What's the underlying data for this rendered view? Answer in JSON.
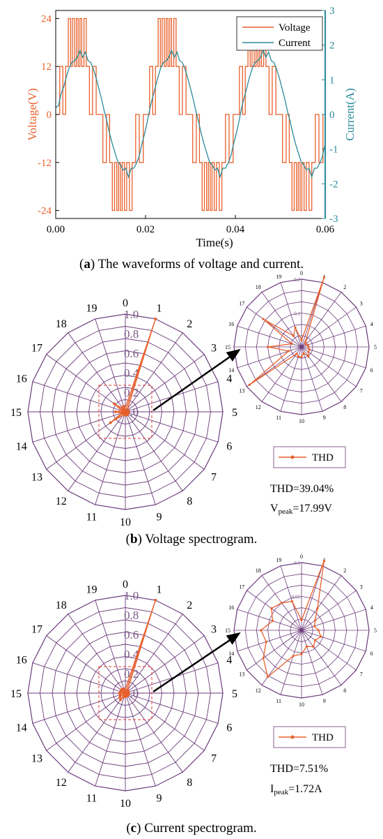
{
  "colors": {
    "voltage": "#e8602c",
    "current": "#2a8a9a",
    "grid": "#6b3a7a",
    "arrow": "#000000",
    "zoombox": "#e53935"
  },
  "chart_data": [
    {
      "panel": "a",
      "type": "line",
      "xlabel": "Time(s)",
      "ylabel_left": "Voltage(V)",
      "ylabel_right": "Current(A)",
      "xlim": [
        0,
        0.06
      ],
      "ylim_left": [
        -26,
        26
      ],
      "ylim_right": [
        -3,
        3
      ],
      "xticks": [
        "0.00",
        "0.02",
        "0.04",
        "0.06"
      ],
      "yticks_left": [
        "24",
        "12",
        "0",
        "-12",
        "-24"
      ],
      "yticks_right": [
        "3",
        "2",
        "1",
        "0",
        "-1",
        "-2",
        "-3"
      ],
      "legend": [
        "Voltage",
        "Current"
      ],
      "legend_position": "top-right",
      "series": [
        {
          "name": "Voltage",
          "axis": "left",
          "x": [
            0,
            0.0009,
            0.0009,
            0.0016,
            0.0016,
            0.0022,
            0.0022,
            0.0028,
            0.0028,
            0.0033,
            0.0033,
            0.0037,
            0.0037,
            0.0042,
            0.0042,
            0.0046,
            0.0046,
            0.005,
            0.005,
            0.0054,
            0.0054,
            0.0058,
            0.0058,
            0.0063,
            0.0063,
            0.0068,
            0.0068,
            0.0075,
            0.0075,
            0.0082,
            0.0082,
            0.009,
            0.009,
            0.0105,
            0.0105,
            0.0113,
            0.0113,
            0.012,
            0.012,
            0.0126,
            0.0126,
            0.0131,
            0.0131,
            0.0136,
            0.0136,
            0.014,
            0.014,
            0.0144,
            0.0144,
            0.0148,
            0.0148,
            0.0153,
            0.0153,
            0.0158,
            0.0158,
            0.0164,
            0.0164,
            0.017,
            0.017,
            0.0178,
            0.0178,
            0.0186,
            0.0186,
            0.0195,
            0.0195,
            0.0209,
            0.0209,
            0.0216,
            0.0216,
            0.0222,
            0.0222,
            0.0228,
            0.0228,
            0.0233,
            0.0233,
            0.0237,
            0.0237,
            0.0242,
            0.0242,
            0.0246,
            0.0246,
            0.025,
            0.025,
            0.0254,
            0.0254,
            0.0258,
            0.0258,
            0.0263,
            0.0263,
            0.0268,
            0.0268,
            0.0275,
            0.0275,
            0.0282,
            0.0282,
            0.029,
            0.029,
            0.0305,
            0.0305,
            0.0313,
            0.0313,
            0.032,
            0.032,
            0.0326,
            0.0326,
            0.0331,
            0.0331,
            0.0336,
            0.0336,
            0.034,
            0.034,
            0.0344,
            0.0344,
            0.0348,
            0.0348,
            0.0353,
            0.0353,
            0.0358,
            0.0358,
            0.0364,
            0.0364,
            0.037,
            0.037,
            0.0378,
            0.0378,
            0.0386,
            0.0386,
            0.0395,
            0.0395,
            0.0409,
            0.0409,
            0.0416,
            0.0416,
            0.0422,
            0.0422,
            0.0428,
            0.0428,
            0.0433,
            0.0433,
            0.0437,
            0.0437,
            0.0442,
            0.0442,
            0.0446,
            0.0446,
            0.045,
            0.045,
            0.0454,
            0.0454,
            0.0458,
            0.0458,
            0.0463,
            0.0463,
            0.0468,
            0.0468,
            0.0475,
            0.0475,
            0.0482,
            0.0482,
            0.049,
            0.049,
            0.0505,
            0.0505,
            0.0513,
            0.0513,
            0.052,
            0.052,
            0.0526,
            0.0526,
            0.0531,
            0.0531,
            0.0536,
            0.0536,
            0.054,
            0.054,
            0.0544,
            0.0544,
            0.0548,
            0.0548,
            0.0553,
            0.0553,
            0.0558,
            0.0558,
            0.0564,
            0.0564,
            0.057,
            0.057,
            0.0578,
            0.0578,
            0.0586,
            0.0586,
            0.0595,
            0.0595,
            0.06
          ],
          "y": [
            0,
            0,
            12,
            12,
            0,
            0,
            12,
            12,
            24,
            24,
            12,
            12,
            24,
            24,
            12,
            12,
            24,
            24,
            12,
            12,
            24,
            24,
            12,
            12,
            24,
            24,
            12,
            12,
            0,
            0,
            12,
            12,
            0,
            0,
            -12,
            -12,
            0,
            0,
            -12,
            -12,
            -24,
            -24,
            -12,
            -12,
            -24,
            -24,
            -12,
            -12,
            -24,
            -24,
            -12,
            -12,
            -24,
            -24,
            -12,
            -12,
            -24,
            -24,
            -12,
            -12,
            0,
            0,
            -12,
            -12,
            0,
            0,
            12,
            12,
            0,
            0,
            12,
            12,
            24,
            24,
            12,
            12,
            24,
            24,
            12,
            12,
            24,
            24,
            12,
            12,
            24,
            24,
            12,
            12,
            24,
            24,
            12,
            12,
            0,
            0,
            12,
            12,
            0,
            0,
            -12,
            -12,
            0,
            0,
            -12,
            -12,
            -24,
            -24,
            -12,
            -12,
            -24,
            -24,
            -12,
            -12,
            -24,
            -24,
            -12,
            -12,
            -24,
            -24,
            -12,
            -12,
            -24,
            -24,
            -12,
            -12,
            0,
            0,
            -12,
            -12,
            0,
            0,
            12,
            12,
            0,
            0,
            12,
            12,
            24,
            24,
            12,
            12,
            24,
            24,
            12,
            12,
            24,
            24,
            12,
            12,
            24,
            24,
            12,
            12,
            24,
            24,
            12,
            12,
            0,
            0,
            12,
            12,
            0,
            0,
            -12,
            -12,
            0,
            0,
            -12,
            -12,
            -24,
            -24,
            -12,
            -12,
            -24,
            -24,
            -12,
            -12,
            -24,
            -24,
            -12,
            -12,
            -24,
            -24,
            -12,
            -12,
            -24,
            -24,
            -12,
            -12,
            0,
            0,
            -12,
            -12,
            0,
            0
          ]
        },
        {
          "name": "Current",
          "axis": "right",
          "x": [
            0,
            0.0006,
            0.0012,
            0.0018,
            0.0024,
            0.003,
            0.0036,
            0.0042,
            0.0048,
            0.0054,
            0.006,
            0.0066,
            0.0072,
            0.0078,
            0.0084,
            0.009,
            0.0096,
            0.0102,
            0.0108,
            0.0114,
            0.012,
            0.0126,
            0.0132,
            0.0138,
            0.0144,
            0.015,
            0.0156,
            0.0162,
            0.0168,
            0.0174,
            0.018,
            0.0186,
            0.0192,
            0.0198,
            0.0204,
            0.021,
            0.0216,
            0.0222,
            0.0228,
            0.0234,
            0.024,
            0.0246,
            0.0252,
            0.0258,
            0.0264,
            0.027,
            0.0276,
            0.0282,
            0.0288,
            0.0294,
            0.03,
            0.0306,
            0.0312,
            0.0318,
            0.0324,
            0.033,
            0.0336,
            0.0342,
            0.0348,
            0.0354,
            0.036,
            0.0366,
            0.0372,
            0.0378,
            0.0384,
            0.039,
            0.0396,
            0.0402,
            0.0408,
            0.0414,
            0.042,
            0.0426,
            0.0432,
            0.0438,
            0.0444,
            0.045,
            0.0456,
            0.0462,
            0.0468,
            0.0474,
            0.048,
            0.0486,
            0.0492,
            0.0498,
            0.0504,
            0.051,
            0.0516,
            0.0522,
            0.0528,
            0.0534,
            0.054,
            0.0546,
            0.0552,
            0.0558,
            0.0564,
            0.057,
            0.0576,
            0.0582,
            0.0588,
            0.0594,
            0.06
          ],
          "y": [
            0.2,
            0.25,
            0.6,
            0.8,
            1.1,
            1.35,
            1.5,
            1.55,
            1.65,
            1.85,
            1.65,
            1.8,
            1.55,
            1.5,
            1.3,
            1.05,
            0.75,
            0.45,
            0.1,
            -0.2,
            -0.55,
            -0.85,
            -1.1,
            -1.35,
            -1.45,
            -1.6,
            -1.55,
            -1.8,
            -1.55,
            -1.55,
            -1.4,
            -1.2,
            -0.85,
            -0.55,
            -0.2,
            0.2,
            0.5,
            0.8,
            1.1,
            1.35,
            1.5,
            1.55,
            1.65,
            1.85,
            1.65,
            1.8,
            1.55,
            1.5,
            1.3,
            1.05,
            0.75,
            0.45,
            0.1,
            -0.2,
            -0.55,
            -0.85,
            -1.1,
            -1.35,
            -1.45,
            -1.6,
            -1.55,
            -1.8,
            -1.55,
            -1.55,
            -1.4,
            -1.2,
            -0.85,
            -0.55,
            -0.2,
            0.2,
            0.5,
            0.8,
            1.1,
            1.35,
            1.5,
            1.55,
            1.65,
            1.85,
            1.65,
            1.8,
            1.55,
            1.5,
            1.3,
            1.05,
            0.75,
            0.45,
            0.1,
            -0.2,
            -0.55,
            -0.85,
            -1.1,
            -1.35,
            -1.45,
            -1.6,
            -1.55,
            -1.8,
            -1.55,
            -1.55,
            -1.4,
            -1.2,
            -0.85
          ]
        }
      ]
    },
    {
      "panel": "b",
      "type": "polar",
      "harmonics": [
        "0",
        "1",
        "2",
        "3",
        "4",
        "5",
        "6",
        "7",
        "8",
        "9",
        "10",
        "11",
        "12",
        "13",
        "14",
        "15",
        "16",
        "17",
        "18",
        "19"
      ],
      "rticks_main": [
        "0.0",
        "0.2",
        "0.4",
        "0.6",
        "0.8",
        "1.0"
      ],
      "rmax_main": 1.0,
      "rticks_inset": [
        "0",
        "0.1",
        "0.2"
      ],
      "rmax_inset": 0.2,
      "series": [
        {
          "name": "THD",
          "values": [
            0.02,
            1.0,
            0.02,
            0.015,
            0.02,
            0.02,
            0.025,
            0.025,
            0.035,
            0.02,
            0.03,
            0.03,
            0.025,
            0.19,
            0.04,
            0.1,
            0.03,
            0.14,
            0.04,
            0.06
          ]
        }
      ],
      "legend": [
        "THD"
      ],
      "annotation_value": "THD=39.04%",
      "peak_label": "V",
      "peak_sub": "peak",
      "peak_value": "=17.99V"
    },
    {
      "panel": "c",
      "type": "polar",
      "harmonics": [
        "0",
        "1",
        "2",
        "3",
        "4",
        "5",
        "6",
        "7",
        "8",
        "9",
        "10",
        "11",
        "12",
        "13",
        "14",
        "15",
        "16",
        "17",
        "18",
        "19"
      ],
      "rticks_main": [
        "0.0",
        "0.2",
        "0.4",
        "0.6",
        "0.8",
        "1.0"
      ],
      "rmax_main": 1.0,
      "rticks_inset": [
        "0",
        "0.05",
        "0.1"
      ],
      "rmax_inset": 0.1,
      "series": [
        {
          "name": "THD",
          "values": [
            0.015,
            1.0,
            0.04,
            0.025,
            0.02,
            0.025,
            0.03,
            0.025,
            0.03,
            0.025,
            0.035,
            0.04,
            0.085,
            0.07,
            0.055,
            0.06,
            0.045,
            0.055,
            0.05,
            0.045
          ]
        }
      ],
      "legend": [
        "THD"
      ],
      "annotation_value": "THD=7.51%",
      "peak_label": "I",
      "peak_sub": "peak",
      "peak_value": "=1.72A"
    }
  ],
  "captions": {
    "a_letter": "a",
    "a_text": " The waveforms of voltage and current.",
    "b_letter": "b",
    "b_text": " Voltage spectrogram.",
    "c_letter": "c",
    "c_text": " Current spectrogram."
  }
}
